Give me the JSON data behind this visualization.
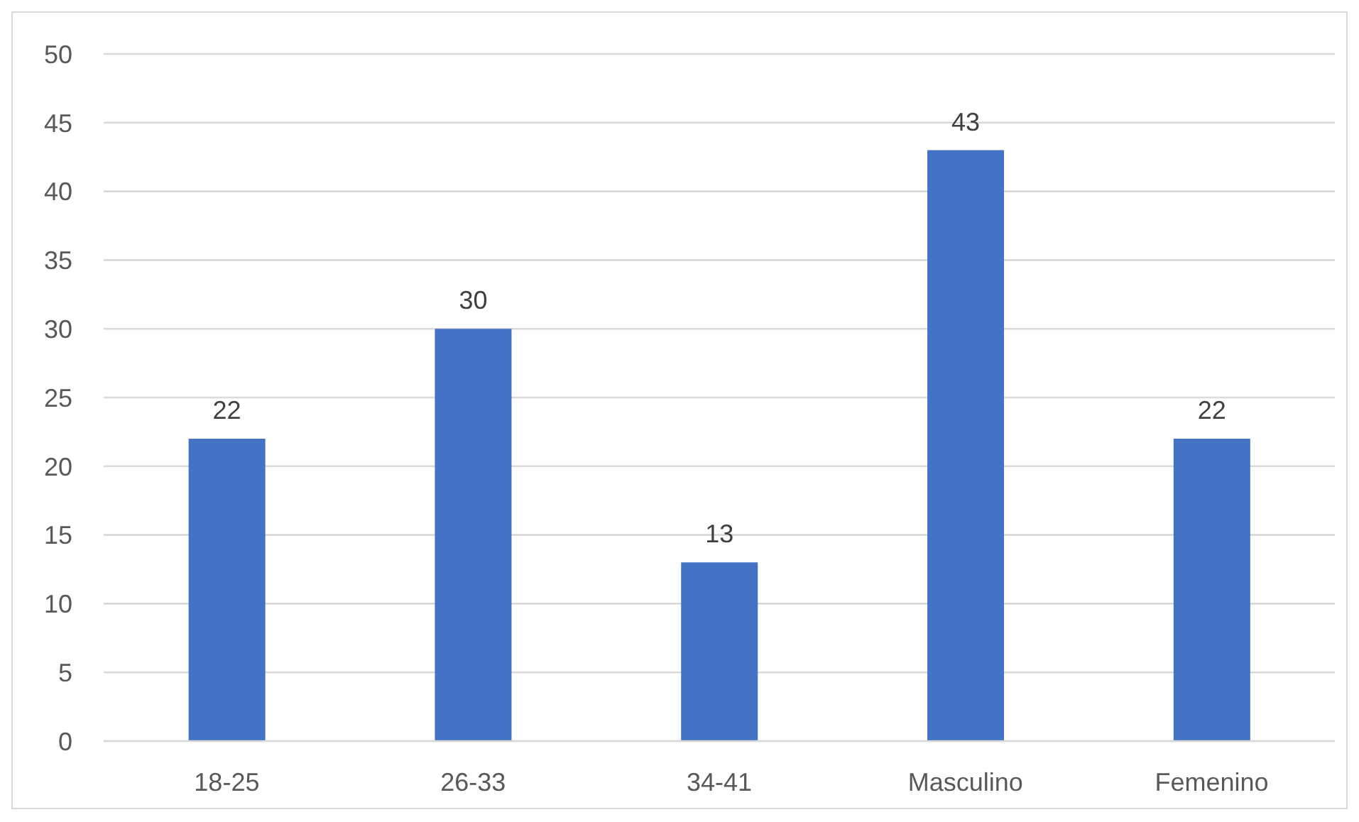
{
  "chart_data": {
    "type": "bar",
    "categories": [
      "18-25",
      "26-33",
      "34-41",
      "Masculino",
      "Femenino"
    ],
    "values": [
      22,
      30,
      13,
      43,
      22
    ],
    "color": "#4472c4",
    "ylim": [
      0,
      50
    ],
    "yticks": [
      0,
      5,
      10,
      15,
      20,
      25,
      30,
      35,
      40,
      45,
      50
    ],
    "grid": "y",
    "data_labels": true
  }
}
